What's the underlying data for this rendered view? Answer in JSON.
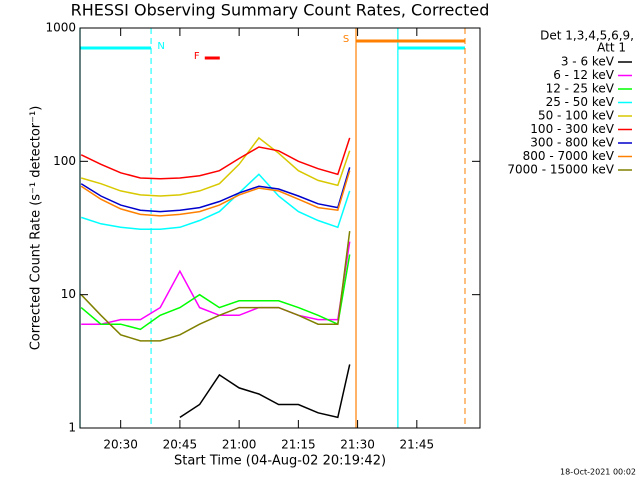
{
  "chart_data": {
    "type": "line",
    "title": "RHESSI Observing Summary Count Rates, Corrected",
    "x_label": "Start Time (04-Aug-02 20:19:42)",
    "y_label": "Corrected Count Rate (s⁻¹ detector⁻¹)",
    "legend_title": [
      "Det 1,3,4,5,6,9,",
      "Att 1"
    ],
    "footer": "18-Oct-2021 00:02",
    "log_y": true,
    "xlim": [
      1219.7,
      1321
    ],
    "xticks": [
      {
        "value": 1230,
        "label": "20:30"
      },
      {
        "value": 1245,
        "label": "20:45"
      },
      {
        "value": 1260,
        "label": "21:00"
      },
      {
        "value": 1275,
        "label": "21:15"
      },
      {
        "value": 1290,
        "label": "21:30"
      },
      {
        "value": 1305,
        "label": "21:45"
      }
    ],
    "ylim": [
      1,
      1000
    ],
    "yticks": [
      1,
      10,
      100,
      1000
    ],
    "x": [
      1220,
      1225,
      1230,
      1235,
      1240,
      1245,
      1250,
      1255,
      1260,
      1265,
      1270,
      1275,
      1280,
      1285,
      1288
    ],
    "series": [
      {
        "name": "3 - 6 keV",
        "color": "#000000",
        "values": [
          null,
          null,
          null,
          null,
          null,
          1.2,
          1.5,
          2.5,
          2,
          1.8,
          1.5,
          1.5,
          1.3,
          1.2,
          3
        ]
      },
      {
        "name": "6 - 12 keV",
        "color": "#ff00ff",
        "values": [
          6,
          6,
          6.5,
          6.5,
          8,
          15,
          8,
          7,
          7,
          8,
          8,
          7,
          6.5,
          6.5,
          25
        ]
      },
      {
        "name": "12 - 25 keV",
        "color": "#00ff00",
        "values": [
          8,
          6,
          6,
          5.5,
          7,
          8,
          10,
          8,
          9,
          9,
          9,
          8,
          7,
          6,
          20
        ]
      },
      {
        "name": "25 - 50 keV",
        "color": "#00ffff",
        "values": [
          38,
          34,
          32,
          31,
          31,
          32,
          36,
          42,
          58,
          80,
          55,
          42,
          36,
          32,
          60
        ]
      },
      {
        "name": "50 - 100 keV",
        "color": "#d8c800",
        "values": [
          75,
          68,
          60,
          56,
          55,
          56,
          60,
          68,
          95,
          150,
          115,
          85,
          72,
          66,
          120
        ]
      },
      {
        "name": "100 - 300 keV",
        "color": "#ff0000",
        "values": [
          112,
          95,
          82,
          75,
          74,
          75,
          78,
          85,
          105,
          128,
          120,
          100,
          88,
          80,
          150
        ]
      },
      {
        "name": "300 - 800 keV",
        "color": "#0000cc",
        "values": [
          68,
          55,
          47,
          43,
          42,
          43,
          45,
          50,
          58,
          65,
          62,
          55,
          48,
          45,
          90
        ]
      },
      {
        "name": "800 - 7000 keV",
        "color": "#ff8000",
        "values": [
          65,
          52,
          44,
          40,
          39,
          40,
          42,
          47,
          56,
          63,
          60,
          52,
          45,
          43,
          85
        ]
      },
      {
        "name": "7000 - 15000 keV",
        "color": "#808000",
        "values": [
          10,
          7,
          5,
          4.5,
          4.5,
          5,
          6,
          7,
          8,
          8,
          8,
          7,
          6,
          6,
          30
        ]
      }
    ],
    "intervals": [
      {
        "label": "N",
        "color": "#00ffff",
        "start": 1219.7,
        "end": 1237.7
      },
      {
        "label": null,
        "color": "#00ffff",
        "start": 1300.2,
        "end": 1317.2
      },
      {
        "label": "S",
        "color": "#ff8000",
        "start": 1289.6,
        "end": 1317.2
      },
      {
        "label": "F",
        "color": "#ff0000",
        "start": 1251.3,
        "end": 1255.1
      }
    ]
  }
}
